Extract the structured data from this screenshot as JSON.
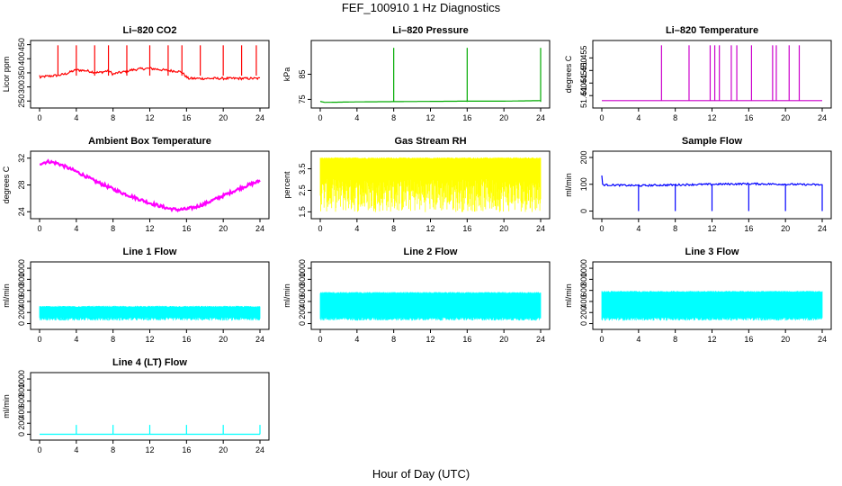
{
  "figure": {
    "title": "FEF_100910  1 Hz Diagnostics",
    "xlabel": "Hour of Day (UTC)"
  },
  "chart_data": [
    {
      "type": "line",
      "title": "Li–820 CO2",
      "ylabel": "Licor ppm",
      "color": "#ff0000",
      "xlim": [
        0,
        24
      ],
      "ylim": [
        238,
        452
      ],
      "yticks": [
        250,
        300,
        350,
        400,
        450
      ],
      "xticks": [
        0,
        4,
        8,
        12,
        16,
        20,
        24
      ],
      "series": [
        {
          "x": [
            0,
            0.1,
            0.5,
            1,
            1.5,
            2,
            2.5,
            3,
            3.5,
            4,
            4.5,
            5,
            5.5,
            6,
            6.5,
            7,
            7.5,
            8,
            8.5,
            9,
            9.5,
            10,
            10.5,
            11,
            11.5,
            12,
            12.5,
            13,
            13.5,
            14,
            14.5,
            15,
            15.5,
            16,
            16.2,
            17,
            18,
            19,
            20,
            21,
            22,
            23,
            24
          ],
          "values": [
            340,
            333,
            337,
            338,
            340,
            341,
            344,
            348,
            355,
            360,
            359,
            358,
            355,
            352,
            351,
            354,
            358,
            345,
            350,
            352,
            356,
            360,
            362,
            364,
            365,
            366,
            364,
            362,
            360,
            358,
            357,
            356,
            352,
            335,
            330,
            330,
            330,
            330,
            330,
            330,
            330,
            330,
            330
          ]
        }
      ]
    },
    {
      "type": "line",
      "title": "Li–820 Pressure",
      "ylabel": "kPa",
      "color": "#00aa00",
      "xlim": [
        0,
        24
      ],
      "ylim": [
        73,
        97
      ],
      "yticks": [
        75,
        85
      ],
      "xticks": [
        0,
        4,
        8,
        12,
        16,
        20,
        24
      ],
      "series": [
        {
          "x": [
            0,
            0.5,
            4,
            8,
            12,
            16,
            20,
            24
          ],
          "values": [
            74.2,
            73.8,
            74.0,
            74.1,
            74.2,
            74.3,
            74.3,
            74.5
          ]
        }
      ]
    },
    {
      "type": "line",
      "title": "Li–820 Temperature",
      "ylabel": "degrees C",
      "color": "#cc00cc",
      "xlim": [
        0,
        24
      ],
      "ylim": [
        51.4365,
        51.4605
      ],
      "yticks": [
        51.44,
        51.445,
        51.45,
        51.455
      ],
      "ytick_labels": [
        "51.440",
        "51.445",
        "51.450",
        "51.455"
      ],
      "xticks": [
        0,
        4,
        8,
        12,
        16,
        20,
        24
      ],
      "series": [
        {
          "x": [
            0,
            24
          ],
          "values": [
            51.438,
            51.438
          ]
        }
      ]
    },
    {
      "type": "line",
      "title": "Ambient Box Temperature",
      "ylabel": "degrees C",
      "color": "#ff00ff",
      "xlim": [
        0,
        24
      ],
      "ylim": [
        23.5,
        32.5
      ],
      "yticks": [
        24,
        28,
        32
      ],
      "ytick_labels": [
        "24",
        "28",
        "32"
      ],
      "xticks": [
        0,
        4,
        8,
        12,
        16,
        20,
        24
      ],
      "series": [
        {
          "x": [
            0,
            1,
            2,
            3,
            4,
            5,
            6,
            7,
            8,
            9,
            10,
            11,
            12,
            13,
            14,
            15,
            16,
            17,
            18,
            19,
            20,
            21,
            22,
            23,
            24
          ],
          "values": [
            31.2,
            31.5,
            31.2,
            30.6,
            30.0,
            29.3,
            28.6,
            28.0,
            27.4,
            26.8,
            26.3,
            25.8,
            25.3,
            24.9,
            24.5,
            24.3,
            24.4,
            24.7,
            25.2,
            25.8,
            26.4,
            27.0,
            27.6,
            28.1,
            28.6
          ]
        }
      ]
    },
    {
      "type": "line",
      "title": "Gas Stream RH",
      "ylabel": "percent",
      "color": "#ffff00",
      "xlim": [
        0,
        24
      ],
      "ylim": [
        1.35,
        4.15
      ],
      "yticks": [
        1.5,
        2.5,
        3.5
      ],
      "xticks": [
        0,
        4,
        8,
        12,
        16,
        20,
        24
      ],
      "series": [
        {
          "x": [
            0,
            24
          ],
          "values": [
            4.0,
            4.0
          ]
        }
      ]
    },
    {
      "type": "line",
      "title": "Sample Flow",
      "ylabel": "ml/min",
      "color": "#0000ff",
      "xlim": [
        0,
        24
      ],
      "ylim": [
        -15,
        210
      ],
      "yticks": [
        0,
        100,
        200
      ],
      "xticks": [
        0,
        4,
        8,
        12,
        16,
        20,
        24
      ],
      "series": [
        {
          "x": [
            0,
            0.1,
            4,
            8,
            12,
            16,
            20,
            24
          ],
          "values": [
            130,
            98,
            95,
            98,
            100,
            102,
            100,
            98
          ]
        }
      ]
    },
    {
      "type": "line",
      "title": "Line 1 Flow",
      "ylabel": "ml/min",
      "color": "#00ffff",
      "xlim": [
        0,
        24
      ],
      "ylim": [
        -40,
        1050
      ],
      "yticks": [
        0,
        200,
        400,
        600,
        800,
        1000
      ],
      "xticks": [
        0,
        4,
        8,
        12,
        16,
        20,
        24
      ],
      "series": [
        {
          "x": [
            0,
            24
          ],
          "values": [
            310,
            310
          ]
        }
      ]
    },
    {
      "type": "line",
      "title": "Line 2 Flow",
      "ylabel": "ml/min",
      "color": "#00ffff",
      "xlim": [
        0,
        24
      ],
      "ylim": [
        -40,
        1050
      ],
      "yticks": [
        0,
        200,
        400,
        600,
        800,
        1000
      ],
      "xticks": [
        0,
        4,
        8,
        12,
        16,
        20,
        24
      ],
      "series": [
        {
          "x": [
            0,
            24
          ],
          "values": [
            560,
            560
          ]
        }
      ]
    },
    {
      "type": "line",
      "title": "Line 3 Flow",
      "ylabel": "ml/min",
      "color": "#00ffff",
      "xlim": [
        0,
        24
      ],
      "ylim": [
        -40,
        1050
      ],
      "yticks": [
        0,
        200,
        400,
        600,
        800,
        1000
      ],
      "xticks": [
        0,
        4,
        8,
        12,
        16,
        20,
        24
      ],
      "series": [
        {
          "x": [
            0,
            24
          ],
          "values": [
            580,
            580
          ]
        }
      ]
    },
    {
      "type": "line",
      "title": "Line 4 (LT) Flow",
      "ylabel": "ml/min",
      "color": "#00ffff",
      "xlim": [
        0,
        24
      ],
      "ylim": [
        -40,
        1050
      ],
      "yticks": [
        0,
        200,
        400,
        600,
        800,
        1000
      ],
      "xticks": [
        0,
        4,
        8,
        12,
        16,
        20,
        24
      ],
      "series": [
        {
          "x": [
            0,
            4,
            8,
            12,
            16,
            20,
            24
          ],
          "values": [
            0,
            0,
            0,
            0,
            0,
            0,
            0
          ]
        }
      ]
    }
  ]
}
